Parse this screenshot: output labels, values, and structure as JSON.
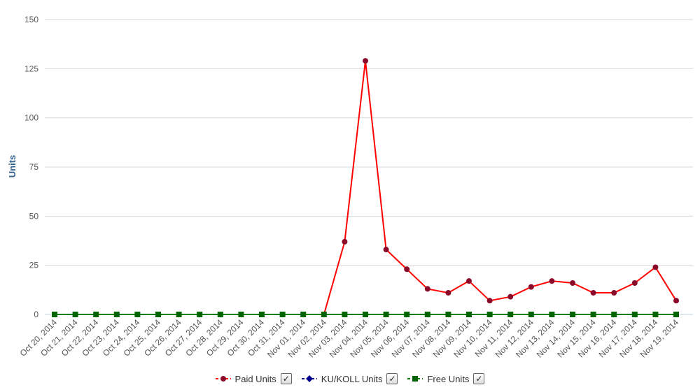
{
  "chart_data": {
    "type": "line",
    "title": "",
    "xlabel": "",
    "ylabel": "Units",
    "ylim": [
      0,
      150
    ],
    "yticks": [
      0,
      25,
      50,
      75,
      100,
      125,
      150
    ],
    "grid": true,
    "legend_position": "bottom-center",
    "categories": [
      "Oct 20, 2014",
      "Oct 21, 2014",
      "Oct 22, 2014",
      "Oct 23, 2014",
      "Oct 24, 2014",
      "Oct 25, 2014",
      "Oct 26, 2014",
      "Oct 27, 2014",
      "Oct 28, 2014",
      "Oct 29, 2014",
      "Oct 30, 2014",
      "Oct 31, 2014",
      "Nov 01, 2014",
      "Nov 02, 2014",
      "Nov 03, 2014",
      "Nov 04, 2014",
      "Nov 05, 2014",
      "Nov 06, 2014",
      "Nov 07, 2014",
      "Nov 08, 2014",
      "Nov 09, 2014",
      "Nov 10, 2014",
      "Nov 11, 2014",
      "Nov 12, 2014",
      "Nov 13, 2014",
      "Nov 14, 2014",
      "Nov 15, 2014",
      "Nov 16, 2014",
      "Nov 17, 2014",
      "Nov 18, 2014",
      "Nov 19, 2014"
    ],
    "series": [
      {
        "name": "Paid Units",
        "color": "#ff0000",
        "marker_color": "#8b0a2a",
        "marker": "circle",
        "values": [
          0,
          0,
          0,
          0,
          0,
          0,
          0,
          0,
          0,
          0,
          0,
          0,
          0,
          0,
          37,
          129,
          33,
          23,
          13,
          11,
          17,
          7,
          9,
          14,
          17,
          16,
          11,
          11,
          16,
          24,
          7
        ]
      },
      {
        "name": "KU/KOLL Units",
        "color": "#00008b",
        "marker_color": "#00008b",
        "marker": "diamond",
        "values": [
          0,
          0,
          0,
          0,
          0,
          0,
          0,
          0,
          0,
          0,
          0,
          0,
          0,
          0,
          0,
          0,
          0,
          0,
          0,
          0,
          0,
          0,
          0,
          0,
          0,
          0,
          0,
          0,
          0,
          0,
          0
        ]
      },
      {
        "name": "Free Units",
        "color": "#008000",
        "marker_color": "#006400",
        "marker": "square",
        "values": [
          0,
          0,
          0,
          0,
          0,
          0,
          0,
          0,
          0,
          0,
          0,
          0,
          0,
          0,
          0,
          0,
          0,
          0,
          0,
          0,
          0,
          0,
          0,
          0,
          0,
          0,
          0,
          0,
          0,
          0,
          0
        ]
      }
    ]
  },
  "legend": {
    "items": [
      {
        "label": "Paid Units",
        "checked": true
      },
      {
        "label": "KU/KOLL Units",
        "checked": true
      },
      {
        "label": "Free Units",
        "checked": true
      }
    ],
    "check_glyph": "✓"
  }
}
